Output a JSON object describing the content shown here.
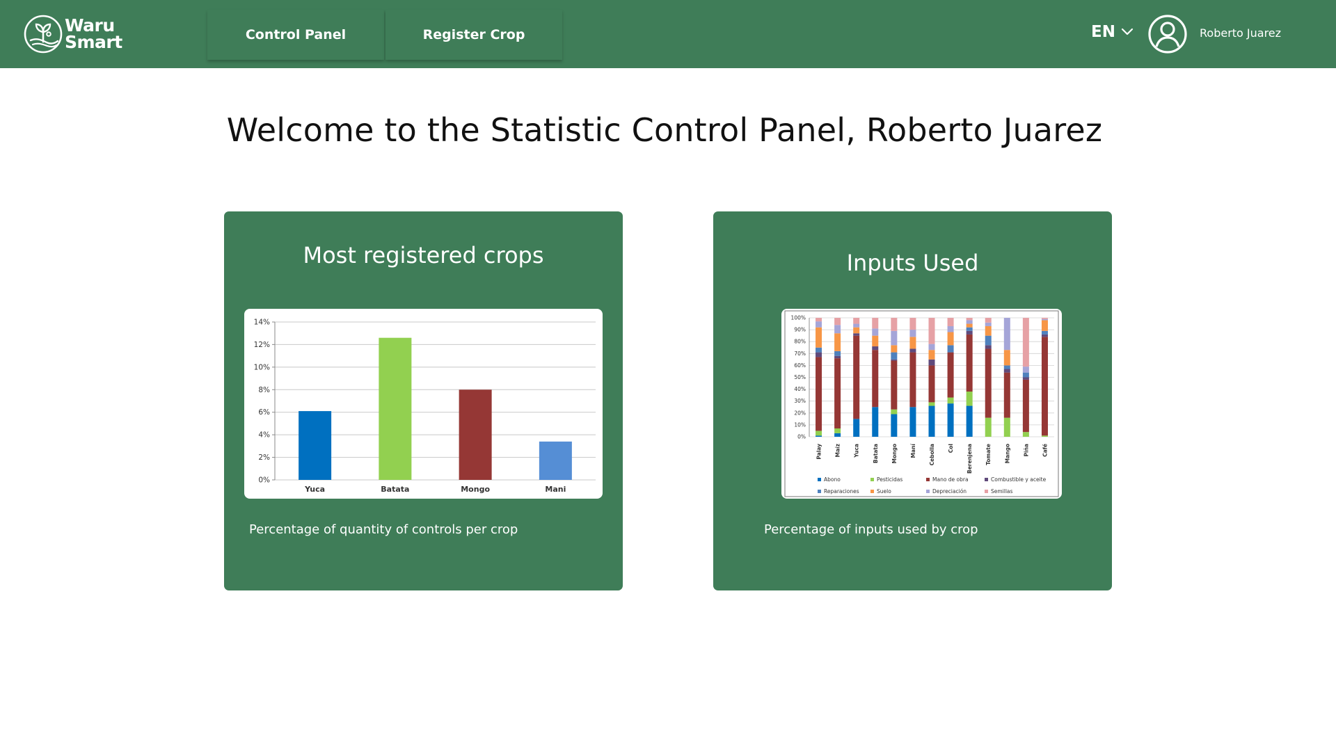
{
  "header": {
    "brand_line1": "Waru",
    "brand_line2": "Smart",
    "nav": [
      {
        "label": "Control Panel"
      },
      {
        "label": "Register Crop"
      }
    ],
    "language": "EN",
    "user_name": "Roberto Juarez",
    "icons": {
      "logo": "sprout-logo-icon",
      "language_toggle": "chevron-down-icon",
      "user": "user-circle-icon"
    },
    "colors": {
      "primary": "#3f7d58",
      "text_on_primary": "#ffffff"
    }
  },
  "page": {
    "title": "Welcome to the Statistic Control Panel, Roberto Juarez"
  },
  "cards": [
    {
      "title": "Most registered crops",
      "caption": "Percentage of quantity of controls per crop"
    },
    {
      "title": "Inputs Used",
      "caption": "Percentage of inputs used by crop"
    }
  ],
  "chart_data": [
    {
      "type": "bar",
      "categories": [
        "Yuca",
        "Batata",
        "Mongo",
        "Mani"
      ],
      "values": [
        6.1,
        12.6,
        8.0,
        3.4
      ],
      "colors": [
        "#0070c0",
        "#92d050",
        "#953735",
        "#558ed5"
      ],
      "ylim": [
        0,
        14
      ],
      "yticks": [
        "0%",
        "2%",
        "4%",
        "6%",
        "8%",
        "10%",
        "12%",
        "14%"
      ],
      "grid": true
    },
    {
      "type": "bar",
      "stacked": true,
      "categories": [
        "Palay",
        "Maíz",
        "Yuca",
        "Batata",
        "Mongo",
        "Maní",
        "Cebolla",
        "Col",
        "Berenjena",
        "Tomate",
        "Mango",
        "Piña",
        "Café"
      ],
      "yticks": [
        "0%",
        "10%",
        "20%",
        "30%",
        "40%",
        "50%",
        "60%",
        "70%",
        "80%",
        "90%",
        "100%"
      ],
      "ylim": [
        0,
        100
      ],
      "grid": true,
      "legend_position": "bottom",
      "series": [
        {
          "name": "Abono",
          "color": "#0070c0",
          "values": [
            1,
            3,
            15,
            25,
            19,
            25,
            26,
            28,
            26,
            0,
            0,
            0,
            0
          ]
        },
        {
          "name": "Pesticidas",
          "color": "#92d050",
          "values": [
            4,
            4,
            0,
            0,
            4,
            0,
            3,
            5,
            12,
            16,
            16,
            4,
            1
          ]
        },
        {
          "name": "Mano de obra",
          "color": "#953735",
          "values": [
            62,
            59,
            70,
            48,
            41,
            46,
            31,
            38,
            48,
            58,
            38,
            44,
            83
          ]
        },
        {
          "name": "Combustible y aceite",
          "color": "#604a7b",
          "values": [
            4,
            2,
            2,
            3,
            1,
            3,
            5,
            0,
            3,
            3,
            3,
            2,
            2
          ]
        },
        {
          "name": "Reparaciones",
          "color": "#4f81bd",
          "values": [
            4,
            4,
            0,
            0,
            6,
            0,
            0,
            6,
            3,
            8,
            3,
            4,
            3
          ]
        },
        {
          "name": "Suelo",
          "color": "#f79646",
          "values": [
            17,
            15,
            5,
            9,
            6,
            10,
            8,
            11,
            3,
            8,
            13,
            0,
            9
          ]
        },
        {
          "name": "Depreciación",
          "color": "#a5a5d8",
          "values": [
            5,
            7,
            3,
            6,
            12,
            6,
            5,
            5,
            3,
            3,
            27,
            5,
            1
          ]
        },
        {
          "name": "Semillas",
          "color": "#e6a1a5",
          "values": [
            3,
            6,
            5,
            9,
            11,
            10,
            22,
            7,
            2,
            4,
            0,
            41,
            1
          ]
        }
      ]
    }
  ]
}
